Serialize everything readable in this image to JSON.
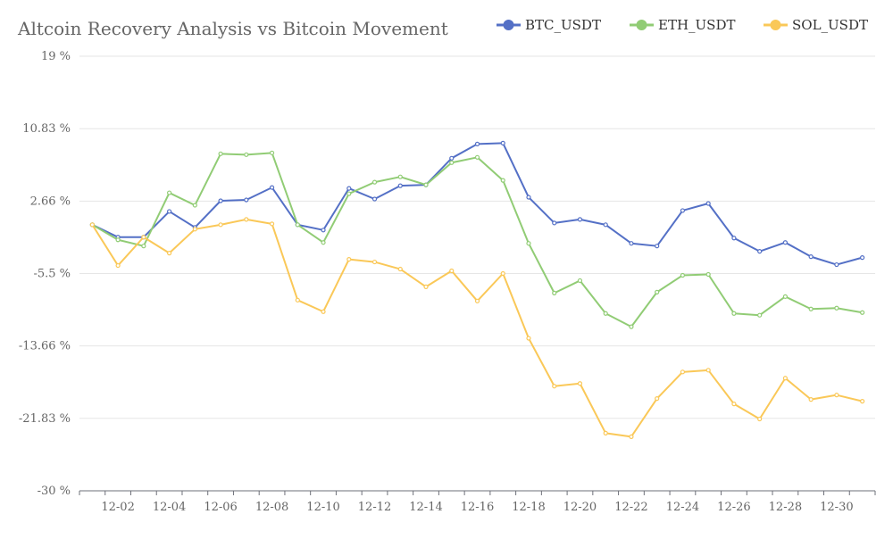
{
  "chart_data": {
    "type": "line",
    "title": "Altcoin Recovery Analysis vs Bitcoin Movement",
    "xlabel": "",
    "ylabel": "",
    "ylim": [
      -30,
      19
    ],
    "yticks": [
      19,
      10.83,
      2.66,
      -5.5,
      -13.66,
      -21.83,
      -30
    ],
    "ytick_labels": [
      "19 %",
      "10.83 %",
      "2.66 %",
      "-5.5 %",
      "-13.66 %",
      "-21.83 %",
      "-30 %"
    ],
    "grid": "horizontal",
    "legend_position": "top-right",
    "x": [
      "12-01",
      "12-02",
      "12-03",
      "12-04",
      "12-05",
      "12-06",
      "12-07",
      "12-08",
      "12-09",
      "12-10",
      "12-11",
      "12-12",
      "12-13",
      "12-14",
      "12-15",
      "12-16",
      "12-17",
      "12-18",
      "12-19",
      "12-20",
      "12-21",
      "12-22",
      "12-23",
      "12-24",
      "12-25",
      "12-26",
      "12-27",
      "12-28",
      "12-29",
      "12-30",
      "12-31"
    ],
    "x_tick_labels": [
      "12-02",
      "12-04",
      "12-06",
      "12-08",
      "12-10",
      "12-12",
      "12-14",
      "12-16",
      "12-18",
      "12-20",
      "12-22",
      "12-24",
      "12-26",
      "12-28",
      "12-30"
    ],
    "series": [
      {
        "name": "BTC_USDT",
        "color": "#5470c6",
        "values": [
          0.0,
          -1.4,
          -1.4,
          1.5,
          -0.3,
          2.7,
          2.8,
          4.2,
          0.0,
          -0.6,
          4.1,
          2.9,
          4.4,
          4.5,
          7.5,
          9.1,
          9.2,
          3.1,
          0.2,
          0.6,
          0.0,
          -2.1,
          -2.4,
          1.6,
          2.4,
          -1.5,
          -3.0,
          -2.0,
          -3.6,
          -4.5,
          -3.7
        ]
      },
      {
        "name": "ETH_USDT",
        "color": "#91cc75",
        "values": [
          0.0,
          -1.7,
          -2.4,
          3.6,
          2.2,
          8.0,
          7.9,
          8.1,
          0.0,
          -2.0,
          3.5,
          4.8,
          5.4,
          4.5,
          7.0,
          7.6,
          5.0,
          -2.1,
          -7.7,
          -6.3,
          -10.0,
          -11.5,
          -7.6,
          -5.7,
          -5.6,
          -10.0,
          -10.2,
          -8.1,
          -9.5,
          -9.4,
          -9.9
        ]
      },
      {
        "name": "SOL_USDT",
        "color": "#fac858",
        "values": [
          0.0,
          -4.6,
          -1.4,
          -3.2,
          -0.5,
          0.0,
          0.6,
          0.1,
          -8.5,
          -9.8,
          -3.9,
          -4.2,
          -5.0,
          -7.0,
          -5.2,
          -8.6,
          -5.5,
          -12.8,
          -18.2,
          -17.9,
          -23.5,
          -23.9,
          -19.6,
          -16.6,
          -16.4,
          -20.2,
          -21.9,
          -17.3,
          -19.7,
          -19.2,
          -19.9
        ]
      }
    ]
  }
}
